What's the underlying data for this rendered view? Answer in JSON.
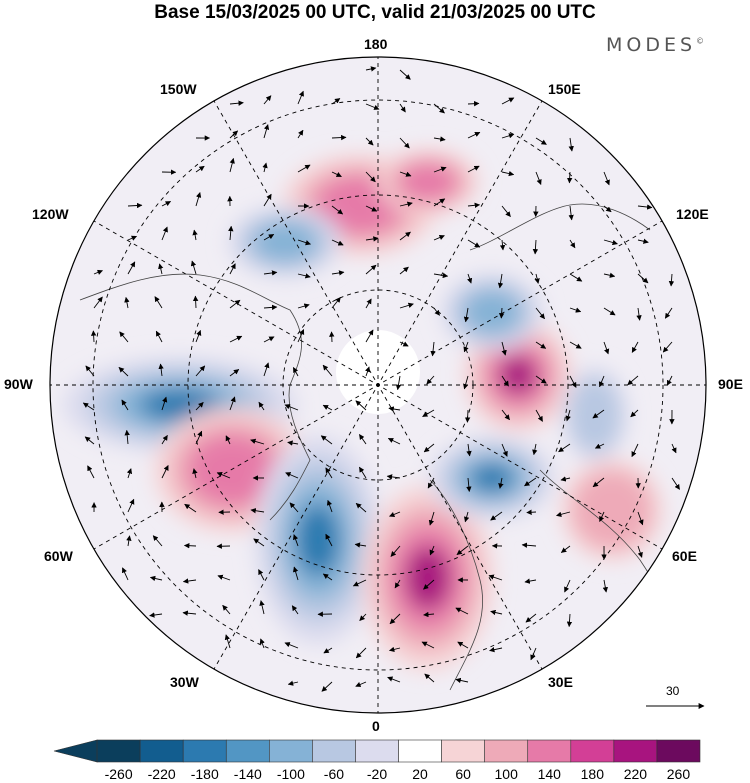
{
  "title": "Base 15/03/2025 00 UTC, valid 21/03/2025 00 UTC",
  "brand": "MODES",
  "brand_mark": "©",
  "longitude_labels": {
    "lon_180": "180",
    "lon_150w": "150W",
    "lon_150e": "150E",
    "lon_120w": "120W",
    "lon_120e": "120E",
    "lon_90w": "90W",
    "lon_90e": "90E",
    "lon_60w": "60W",
    "lon_60e": "60E",
    "lon_30w": "30W",
    "lon_30e": "30E",
    "lon_0": "0"
  },
  "reference_vector_label": "30",
  "colorbar": {
    "ticks": [
      "-260",
      "-220",
      "-180",
      "-140",
      "-100",
      "-60",
      "-20",
      "20",
      "60",
      "100",
      "140",
      "180",
      "220",
      "260"
    ],
    "colors": [
      "#0b3e5c",
      "#125d8f",
      "#2c7ab0",
      "#5296c4",
      "#85b2d6",
      "#b8c8e2",
      "#dcdcee",
      "#ffffff",
      "#f6d4d6",
      "#eeaab8",
      "#e67aa8",
      "#d33f96",
      "#a8147f",
      "#6c0a5e"
    ]
  },
  "anomaly_centers": [
    {
      "sign": "neg",
      "strength": 3
    },
    {
      "sign": "pos",
      "strength": 2
    },
    {
      "sign": "neg",
      "strength": 3
    },
    {
      "sign": "pos",
      "strength": 3
    },
    {
      "sign": "neg",
      "strength": 3
    },
    {
      "sign": "pos",
      "strength": 3
    },
    {
      "sign": "neg",
      "strength": 2
    },
    {
      "sign": "pos",
      "strength": 2
    },
    {
      "sign": "neg",
      "strength": 2
    },
    {
      "sign": "pos",
      "strength": 2
    },
    {
      "sign": "neg",
      "strength": 1
    },
    {
      "sign": "pos",
      "strength": 1
    }
  ]
}
